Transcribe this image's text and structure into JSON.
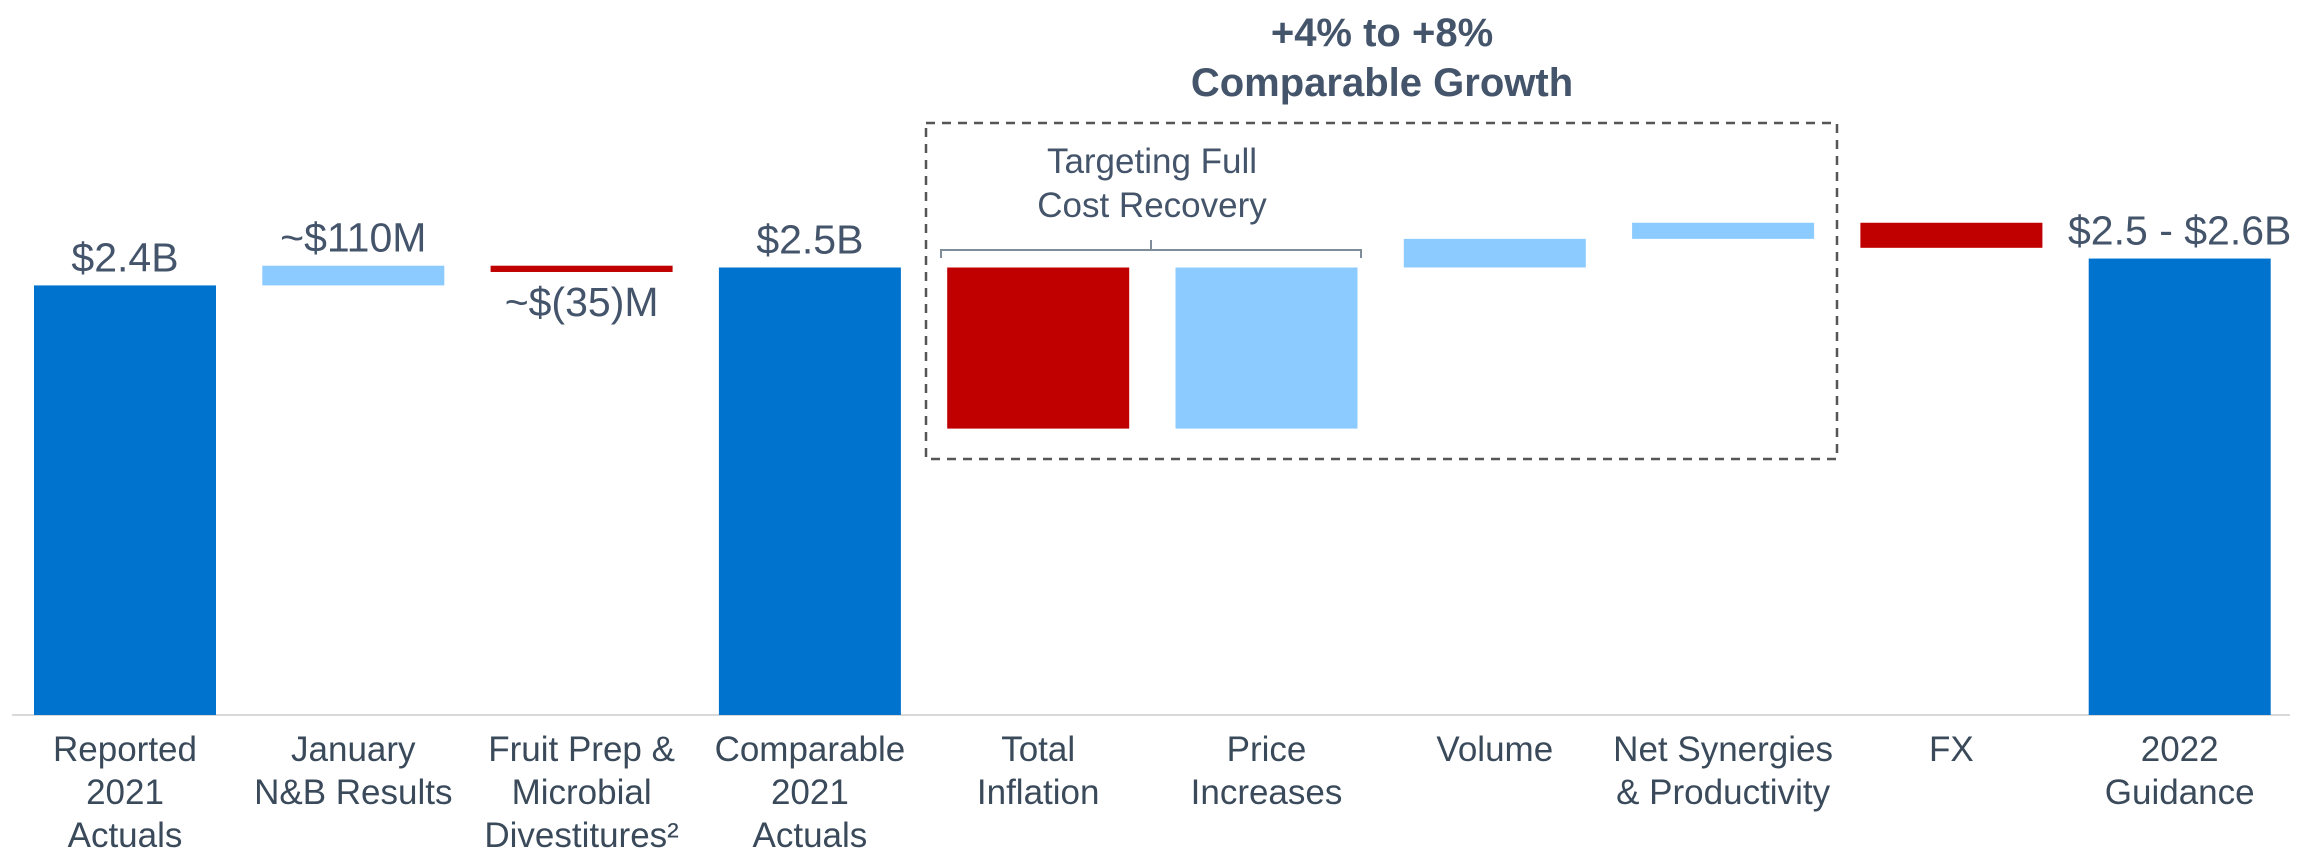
{
  "chart_data": {
    "type": "waterfall",
    "title": "+4% to +8%\nComparable Growth",
    "annotations": [
      "Targeting Full\nCost Recovery"
    ],
    "categories": [
      "Reported\n2021\nActuals",
      "January\nN&B Results",
      "Fruit Prep &\nMicrobial\nDivestitures²",
      "Comparable\n2021\nActuals",
      "Total\nInflation",
      "Price\nIncreases",
      "Volume",
      "Net Synergies\n& Productivity",
      "FX",
      "2022\nGuidance"
    ],
    "measure": [
      "total",
      "relative",
      "relative",
      "total",
      "relative",
      "relative",
      "relative",
      "relative",
      "relative",
      "total"
    ],
    "values": [
      2.4,
      0.11,
      -0.035,
      2.5,
      -0.9,
      0.9,
      0.16,
      0.09,
      -0.14,
      2.55
    ],
    "value_labels": [
      "$2.4B",
      "~$110M",
      "~$(35)M",
      "$2.5B",
      null,
      null,
      null,
      null,
      null,
      "$2.5 - $2.6B"
    ],
    "colors": {
      "total": "#0073cf",
      "increase": "#8ccbff",
      "decrease": "#c00000"
    }
  }
}
